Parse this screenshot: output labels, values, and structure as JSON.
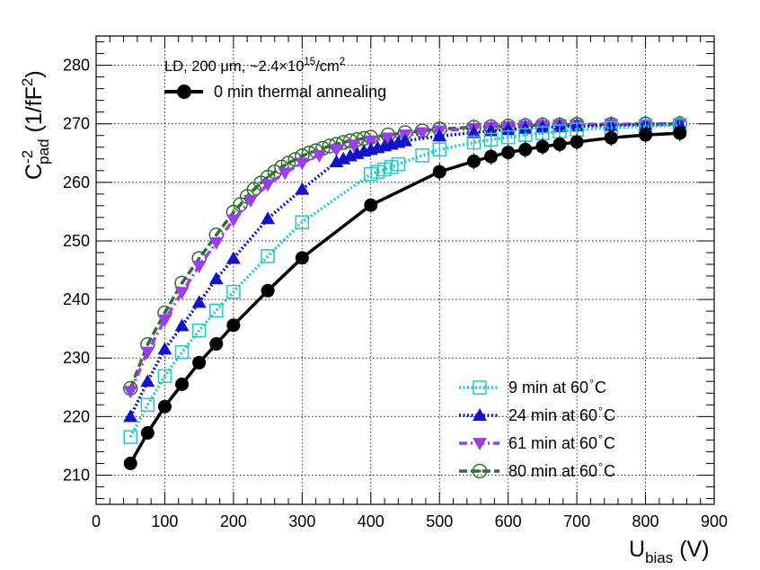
{
  "chart_data": {
    "type": "line",
    "title": "",
    "xlabel": {
      "main": "U",
      "sub": "bias",
      "unit": " (V)"
    },
    "ylabel": {
      "main": "C",
      "sup": "-2",
      "sub": "pad",
      "unit_pre": " (1/fF",
      "unit_sup": "2",
      "unit_post": ")"
    },
    "xlim": [
      0,
      900
    ],
    "ylim": [
      205,
      285
    ],
    "xticks": [
      0,
      100,
      200,
      300,
      400,
      500,
      600,
      700,
      800,
      900
    ],
    "yticks": [
      210,
      220,
      230,
      240,
      250,
      260,
      270,
      280
    ],
    "grid": true,
    "annotation": {
      "prefix": "LD, 200 ",
      "mu": "μ",
      "mid": "m, ~2.4×10",
      "exp": "15",
      "mid2": "/cm",
      "exp2": "2"
    },
    "legend_top": "0 min thermal annealing",
    "series": [
      {
        "name": "0 min thermal annealing",
        "color": "#000000",
        "marker": "filled-circle",
        "dash": "solid",
        "x": [
          50,
          75,
          100,
          125,
          150,
          175,
          200,
          250,
          300,
          400,
          500,
          550,
          575,
          600,
          625,
          650,
          675,
          700,
          750,
          800,
          850
        ],
        "y": [
          212,
          217.2,
          221.7,
          225.5,
          229.2,
          232.4,
          235.6,
          241.5,
          247.1,
          256.1,
          261.8,
          263.6,
          264.4,
          265.1,
          265.6,
          266.1,
          266.5,
          266.9,
          267.6,
          268.1,
          268.4
        ]
      },
      {
        "name": "9 min at 60",
        "unit": "C",
        "color": "#22c9c9",
        "marker": "open-square",
        "dash": "dotted",
        "x": [
          50,
          75,
          100,
          125,
          150,
          175,
          200,
          250,
          300,
          400,
          410,
          420,
          430,
          440,
          475,
          500,
          550,
          575,
          600,
          625,
          650,
          675,
          700,
          750,
          800,
          850
        ],
        "y": [
          216.5,
          222,
          226.9,
          231,
          234.7,
          238.1,
          241.3,
          247.4,
          253.2,
          261.4,
          261.8,
          262.2,
          262.6,
          263.1,
          264.6,
          265.6,
          266.8,
          267.3,
          267.7,
          268.1,
          268.4,
          268.7,
          269.0,
          269.3,
          269.6,
          269.8
        ]
      },
      {
        "name": "24 min at 60",
        "unit": "C",
        "color": "#1212c8",
        "marker": "filled-triangle-up",
        "dash": "dotted",
        "x": [
          50,
          75,
          100,
          125,
          150,
          175,
          200,
          250,
          300,
          350,
          360,
          370,
          380,
          390,
          400,
          410,
          420,
          430,
          440,
          450,
          500,
          550,
          575,
          600,
          625,
          650,
          675,
          700,
          750,
          800,
          850
        ],
        "y": [
          220,
          226,
          231.5,
          235.5,
          239.5,
          243.5,
          247,
          253.8,
          258.8,
          263.5,
          264,
          264.5,
          264.9,
          265.3,
          265.6,
          265.9,
          266.2,
          266.5,
          266.8,
          267.1,
          267.9,
          268.5,
          268.8,
          269.0,
          269.2,
          269.4,
          269.5,
          269.6,
          269.7,
          269.8,
          269.9
        ]
      },
      {
        "name": "61 min at 60",
        "unit": "C",
        "color": "#9b40e8",
        "marker": "filled-triangle-down",
        "dash": "dashdot",
        "x": [
          50,
          75,
          100,
          125,
          150,
          175,
          200,
          225,
          250,
          275,
          300,
          325,
          350,
          375,
          400,
          425,
          450,
          475,
          500,
          550,
          575,
          600,
          625,
          650,
          675,
          700,
          750,
          800,
          850
        ],
        "y": [
          224.3,
          231,
          236.5,
          241.2,
          245.7,
          249.7,
          253.6,
          256.9,
          259.6,
          261.6,
          263.3,
          264.6,
          265.6,
          266.4,
          267.1,
          267.6,
          268.1,
          268.5,
          268.8,
          269.2,
          269.4,
          269.5,
          269.6,
          269.7,
          269.8,
          269.8,
          269.9,
          269.9,
          270.0
        ]
      },
      {
        "name": "80 min at 60",
        "unit": "C",
        "color": "#2f6e2f",
        "marker": "open-circle-dot",
        "dash": "dashed",
        "x": [
          50,
          75,
          100,
          125,
          150,
          175,
          200,
          210,
          220,
          230,
          240,
          250,
          260,
          270,
          280,
          290,
          300,
          310,
          320,
          330,
          340,
          350,
          360,
          370,
          380,
          390,
          400,
          425,
          450,
          475,
          500,
          550,
          575,
          600,
          625,
          650,
          675,
          700,
          750,
          800,
          850
        ],
        "y": [
          224.8,
          232.3,
          237.7,
          242.8,
          247,
          251,
          254.9,
          256.2,
          257.6,
          258.8,
          259.9,
          260.9,
          261.8,
          262.6,
          263.3,
          263.9,
          264.5,
          265,
          265.4,
          265.8,
          266.2,
          266.5,
          266.8,
          267.1,
          267.3,
          267.5,
          267.7,
          268.1,
          268.5,
          268.8,
          269.1,
          269.4,
          269.5,
          269.6,
          269.7,
          269.8,
          269.8,
          269.9,
          269.9,
          270.0,
          270.0
        ]
      }
    ],
    "legend_unit_degree": "∘"
  }
}
